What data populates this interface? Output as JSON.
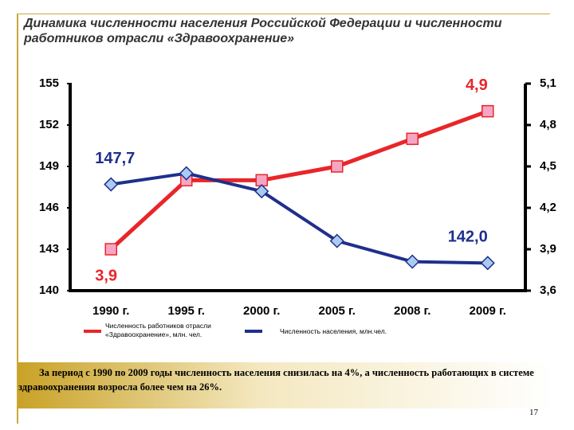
{
  "header": {
    "title": "Динамика численности населения Российской Федерации и численности работников отрасли «Здравоохранение»"
  },
  "chart_data": {
    "type": "line",
    "categories": [
      "1990 г.",
      "1995 г.",
      "2000 г.",
      "2005 г.",
      "2008 г.",
      "2009 г."
    ],
    "series": [
      {
        "name": "Численность работников отрасли «Здравоохранение», млн. чел.",
        "color": "#e8262a",
        "axis": "y2",
        "values": [
          3.9,
          4.4,
          4.4,
          4.5,
          4.7,
          4.9
        ],
        "value_labels": [
          "3,9",
          null,
          null,
          null,
          null,
          "4,9"
        ]
      },
      {
        "name": "Численность населения, млн.чел.",
        "color": "#1f2f8c",
        "values": [
          147.7,
          148.5,
          147.2,
          143.6,
          142.1,
          142.0
        ],
        "value_labels": [
          "147,7",
          null,
          null,
          null,
          null,
          "142,0"
        ]
      }
    ],
    "ylim": [
      140,
      155
    ],
    "yticks": [
      140,
      143,
      146,
      149,
      152,
      155
    ],
    "y2lim": [
      3.6,
      5.1
    ],
    "y2ticks": [
      {
        "value": 3.6,
        "label": "3,6"
      },
      {
        "value": 3.9,
        "label": "3,9"
      },
      {
        "value": 4.2,
        "label": "4,2"
      },
      {
        "value": 4.5,
        "label": "4,5"
      },
      {
        "value": 4.8,
        "label": "4,8"
      },
      {
        "value": 5.1,
        "label": "5,1"
      }
    ],
    "grid": false
  },
  "footer": {
    "text": "За период с 1990 по 2009 годы численность населения  снизилась на 4%, а численность работающих в системе здравоохранения  возросла более чем на 26%."
  },
  "page_number": "17"
}
